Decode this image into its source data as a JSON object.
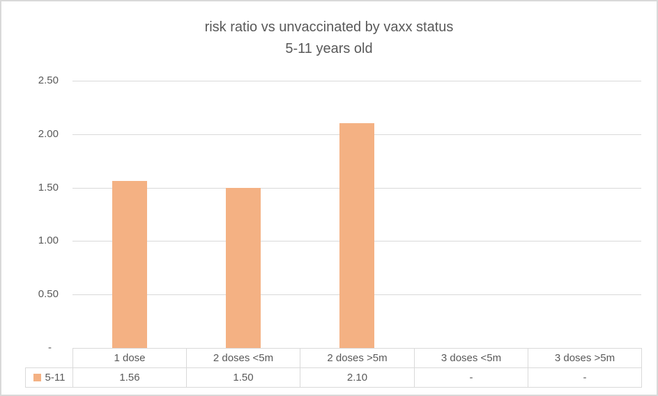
{
  "chart_data": {
    "type": "bar",
    "title": "risk ratio vs unvaccinated by vaxx status",
    "subtitle": "5-11 years old",
    "categories": [
      "1 dose",
      "2 doses <5m",
      "2 doses >5m",
      "3 doses <5m",
      "3 doses >5m"
    ],
    "series": [
      {
        "name": "5-11",
        "values": [
          1.56,
          1.5,
          2.1,
          null,
          null
        ],
        "display_values": [
          "1.56",
          "1.50",
          "2.10",
          "-",
          "-"
        ]
      }
    ],
    "ylim": [
      0,
      2.5
    ],
    "yticks": [
      {
        "value": 2.5,
        "label": "2.50"
      },
      {
        "value": 2.0,
        "label": "2.00"
      },
      {
        "value": 1.5,
        "label": "1.50"
      },
      {
        "value": 1.0,
        "label": "1.00"
      },
      {
        "value": 0.5,
        "label": "0.50"
      },
      {
        "value": 0.0,
        "label": "-"
      }
    ],
    "grid": true,
    "legend_position": "table-left"
  },
  "colors": {
    "bar": "#F4B183",
    "gridline": "#D9D9D9",
    "table_border": "#D9D9D9",
    "text": "#595959",
    "background": "#FFFFFF",
    "outer_border": "#D9D9D9"
  }
}
